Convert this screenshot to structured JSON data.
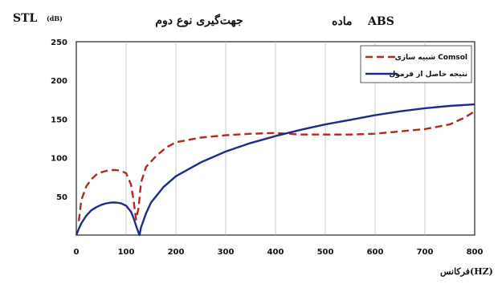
{
  "chart_data": {
    "type": "line",
    "title": "جهت‌گیری نوع دوم",
    "subtitle": "ماده    ABS",
    "ylabel": "STL",
    "ylabel_unit": "(dB)",
    "xlabel": "فرکانس(HZ)",
    "xlim": [
      0,
      800
    ],
    "ylim": [
      0,
      250
    ],
    "xticks": [
      0,
      100,
      200,
      300,
      400,
      500,
      600,
      700,
      800
    ],
    "yticks": [
      50,
      100,
      150,
      200,
      250
    ],
    "grid": "vertical",
    "legend_position": "top-right",
    "colors": {
      "simulation": "#b0281e",
      "formula": "#1c2a8c",
      "grid": "#bdbdbd"
    },
    "series": [
      {
        "name": "شبیه سازی Comsol",
        "style": "dashed",
        "x": [
          5,
          10,
          20,
          30,
          40,
          50,
          60,
          70,
          80,
          90,
          100,
          110,
          115,
          120,
          125,
          130,
          140,
          160,
          180,
          200,
          250,
          300,
          350,
          400,
          450,
          500,
          550,
          600,
          650,
          700,
          750,
          780,
          800
        ],
        "y": [
          18,
          45,
          63,
          72,
          78,
          81,
          83,
          84,
          84,
          83,
          80,
          65,
          45,
          20,
          35,
          68,
          88,
          102,
          113,
          120,
          126,
          129,
          131,
          132,
          130,
          130,
          130,
          131,
          134,
          137,
          143,
          152,
          160
        ]
      },
      {
        "name": "نتیجه حاصل از فرمول",
        "style": "solid",
        "x": [
          0,
          5,
          10,
          20,
          30,
          40,
          50,
          60,
          70,
          80,
          90,
          100,
          110,
          115,
          120,
          125,
          127,
          130,
          140,
          150,
          175,
          200,
          250,
          300,
          350,
          400,
          450,
          500,
          550,
          600,
          650,
          700,
          750,
          800
        ],
        "y": [
          0,
          8,
          15,
          25,
          32,
          36,
          39,
          41,
          42,
          42,
          41,
          38,
          30,
          22,
          12,
          3,
          0,
          10,
          28,
          42,
          62,
          76,
          94,
          108,
          119,
          128,
          136,
          143,
          149,
          155,
          160,
          164,
          167,
          169
        ]
      }
    ]
  }
}
